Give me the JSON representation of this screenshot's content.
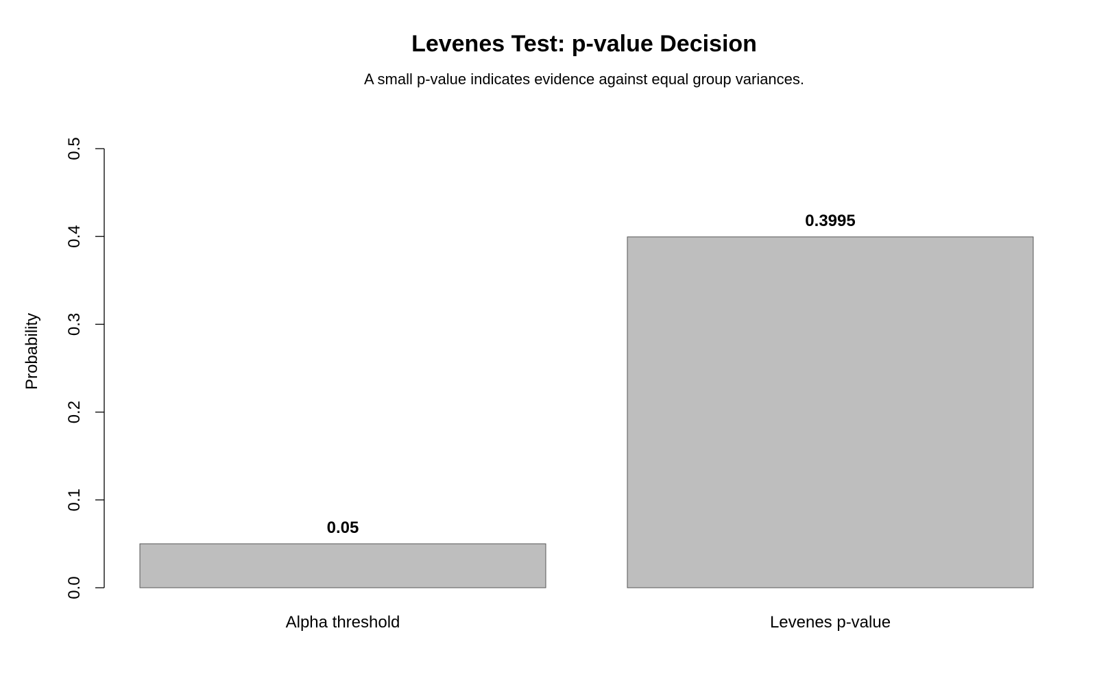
{
  "chart_data": {
    "type": "bar",
    "title": "Levenes Test: p-value Decision",
    "subtitle": "A small p-value indicates evidence against equal group variances.",
    "xlabel": "",
    "ylabel": "Probability",
    "categories": [
      "Alpha threshold",
      "Levenes p-value"
    ],
    "values": [
      0.05,
      0.3995
    ],
    "data_labels": [
      "0.05",
      "0.3995"
    ],
    "ylim": [
      0,
      0.5
    ],
    "yticks": [
      0.0,
      0.1,
      0.2,
      0.3,
      0.4,
      0.5
    ],
    "ytick_labels": [
      "0.0",
      "0.1",
      "0.2",
      "0.3",
      "0.4",
      "0.5"
    ],
    "grid": false,
    "bar_color": "#bebebe",
    "bar_border_color": "#555555"
  }
}
